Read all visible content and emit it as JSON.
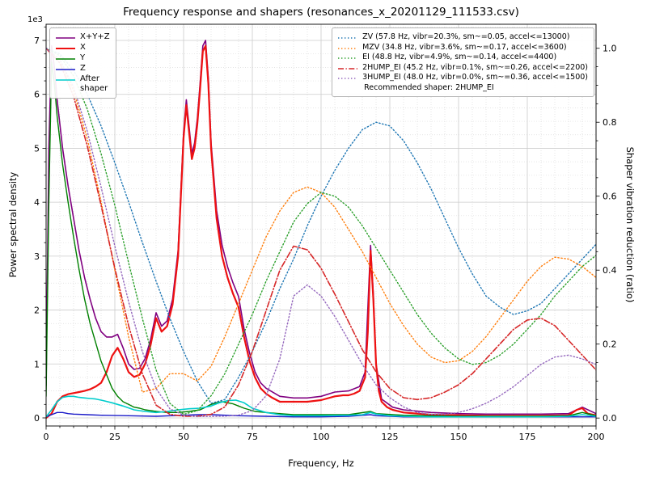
{
  "chart_data": {
    "type": "line",
    "title": "Frequency response and shapers (resonances_x_20201129_111533.csv)",
    "xlabel": "Frequency, Hz",
    "ylabel_left": "Power spectral density",
    "ylabel_right": "Shaper vibration reduction (ratio)",
    "y_left_offset_text": "1e3",
    "xlim": [
      0,
      200
    ],
    "ylim_left": [
      -0.15,
      7.3
    ],
    "ylim_right": [
      -0.0215,
      1.065
    ],
    "grid": "both",
    "x_ticks": {
      "values": [
        0,
        25,
        50,
        75,
        100,
        125,
        150,
        175,
        200
      ],
      "labels": [
        "0",
        "25",
        "50",
        "75",
        "100",
        "125",
        "150",
        "175",
        "200"
      ]
    },
    "y_left_ticks": {
      "values": [
        0,
        1,
        2,
        3,
        4,
        5,
        6,
        7
      ],
      "labels": [
        "0",
        "1",
        "2",
        "3",
        "4",
        "5",
        "6",
        "7"
      ]
    },
    "y_right_ticks": {
      "values": [
        0,
        0.2,
        0.4,
        0.6,
        0.8,
        1.0
      ],
      "labels": [
        "0.0",
        "0.2",
        "0.4",
        "0.6",
        "0.8",
        "1.0"
      ]
    },
    "x_minor_step": 5,
    "y_left_minor_step": 0.25,
    "y_right_minor_step": 0.05,
    "psd_unit_scale": "1e3",
    "psd_series": [
      {
        "name": "xyz",
        "label": "X+Y+Z",
        "color": "#800080",
        "style": "solid",
        "width": 1.6,
        "x": [
          0,
          1,
          2,
          3,
          4,
          6,
          8,
          10,
          12,
          14,
          16,
          18,
          20,
          22,
          24,
          26,
          28,
          30,
          32,
          34,
          36,
          38,
          40,
          42,
          44,
          46,
          48,
          50,
          51,
          52,
          53,
          54,
          55,
          56,
          57,
          58,
          59,
          60,
          62,
          64,
          66,
          68,
          70,
          72,
          74,
          76,
          78,
          80,
          85,
          90,
          95,
          100,
          105,
          110,
          114,
          116,
          118,
          119,
          120,
          122,
          126,
          130,
          140,
          150,
          160,
          170,
          180,
          190,
          195,
          200
        ],
        "y": [
          0.6,
          5.0,
          6.9,
          6.5,
          5.9,
          5.0,
          4.3,
          3.7,
          3.1,
          2.6,
          2.2,
          1.85,
          1.6,
          1.5,
          1.5,
          1.55,
          1.3,
          1.0,
          0.9,
          0.92,
          1.1,
          1.45,
          1.95,
          1.7,
          1.8,
          2.2,
          3.1,
          5.3,
          5.9,
          5.4,
          4.9,
          5.1,
          5.55,
          6.2,
          6.9,
          7.0,
          6.3,
          5.1,
          3.85,
          3.2,
          2.8,
          2.5,
          2.25,
          1.65,
          1.2,
          0.85,
          0.65,
          0.55,
          0.4,
          0.37,
          0.37,
          0.4,
          0.48,
          0.5,
          0.58,
          0.85,
          3.2,
          2.3,
          1.0,
          0.35,
          0.2,
          0.15,
          0.1,
          0.08,
          0.07,
          0.07,
          0.07,
          0.08,
          0.2,
          0.08
        ]
      },
      {
        "name": "x",
        "label": "X",
        "color": "#ee1111",
        "style": "solid",
        "width": 2.2,
        "x": [
          0,
          2,
          4,
          6,
          8,
          10,
          12,
          14,
          16,
          18,
          20,
          22,
          24,
          26,
          28,
          30,
          32,
          34,
          36,
          38,
          40,
          42,
          44,
          46,
          48,
          50,
          51,
          52,
          53,
          54,
          55,
          56,
          57,
          58,
          59,
          60,
          62,
          64,
          66,
          68,
          70,
          72,
          74,
          76,
          78,
          80,
          82,
          85,
          88,
          90,
          95,
          100,
          105,
          108,
          110,
          112,
          114,
          116,
          117,
          118,
          119,
          120,
          121,
          122,
          124,
          126,
          130,
          135,
          140,
          150,
          160,
          170,
          180,
          190,
          193,
          195,
          197,
          200
        ],
        "y": [
          0,
          0.08,
          0.3,
          0.4,
          0.44,
          0.46,
          0.48,
          0.5,
          0.53,
          0.58,
          0.65,
          0.85,
          1.15,
          1.3,
          1.1,
          0.85,
          0.76,
          0.8,
          1.0,
          1.35,
          1.85,
          1.6,
          1.7,
          2.1,
          3.0,
          5.2,
          5.8,
          5.3,
          4.8,
          5.0,
          5.45,
          6.1,
          6.8,
          6.9,
          6.2,
          5.0,
          3.7,
          3.0,
          2.6,
          2.3,
          2.05,
          1.5,
          1.05,
          0.75,
          0.55,
          0.45,
          0.38,
          0.3,
          0.3,
          0.3,
          0.3,
          0.33,
          0.4,
          0.42,
          0.42,
          0.45,
          0.5,
          0.75,
          1.6,
          3.1,
          2.2,
          1.0,
          0.5,
          0.3,
          0.2,
          0.15,
          0.1,
          0.08,
          0.06,
          0.05,
          0.04,
          0.04,
          0.04,
          0.05,
          0.15,
          0.18,
          0.08,
          0.05
        ]
      },
      {
        "name": "y",
        "label": "Y",
        "color": "#008000",
        "style": "solid",
        "width": 1.4,
        "x": [
          0,
          1,
          2,
          3,
          4,
          6,
          8,
          10,
          12,
          14,
          16,
          18,
          20,
          22,
          24,
          26,
          28,
          30,
          32,
          34,
          36,
          40,
          44,
          48,
          52,
          56,
          58,
          60,
          62,
          64,
          66,
          68,
          70,
          72,
          76,
          80,
          85,
          90,
          100,
          110,
          118,
          120,
          130,
          140,
          150,
          160,
          170,
          180,
          190,
          195,
          200
        ],
        "y": [
          0.4,
          4.0,
          6.6,
          6.2,
          5.6,
          4.7,
          4.0,
          3.35,
          2.75,
          2.2,
          1.75,
          1.4,
          1.05,
          0.8,
          0.55,
          0.4,
          0.3,
          0.25,
          0.2,
          0.18,
          0.15,
          0.12,
          0.1,
          0.1,
          0.12,
          0.15,
          0.2,
          0.25,
          0.28,
          0.3,
          0.28,
          0.26,
          0.22,
          0.18,
          0.12,
          0.1,
          0.08,
          0.06,
          0.06,
          0.06,
          0.12,
          0.08,
          0.05,
          0.04,
          0.03,
          0.03,
          0.03,
          0.03,
          0.04,
          0.1,
          0.04
        ]
      },
      {
        "name": "z",
        "label": "Z",
        "color": "#1a1ac8",
        "style": "solid",
        "width": 1.4,
        "x": [
          0,
          2,
          4,
          6,
          8,
          10,
          15,
          20,
          30,
          40,
          50,
          55,
          60,
          70,
          80,
          90,
          100,
          110,
          118,
          120,
          130,
          150,
          170,
          190,
          200
        ],
        "y": [
          0.02,
          0.06,
          0.1,
          0.1,
          0.08,
          0.07,
          0.06,
          0.05,
          0.04,
          0.03,
          0.05,
          0.06,
          0.06,
          0.04,
          0.03,
          0.02,
          0.02,
          0.03,
          0.06,
          0.04,
          0.02,
          0.02,
          0.02,
          0.02,
          0.02
        ]
      },
      {
        "name": "after_shaper",
        "label": "After\nshaper",
        "color": "#00cccc",
        "style": "solid",
        "width": 1.6,
        "x": [
          0,
          2,
          4,
          6,
          8,
          10,
          12,
          14,
          16,
          18,
          20,
          24,
          28,
          32,
          36,
          40,
          44,
          48,
          52,
          56,
          60,
          63,
          66,
          69,
          72,
          75,
          80,
          85,
          90,
          100,
          110,
          115,
          118,
          120,
          125,
          130,
          140,
          150,
          160,
          170,
          180,
          190,
          195,
          200
        ],
        "y": [
          0.02,
          0.15,
          0.3,
          0.38,
          0.4,
          0.4,
          0.38,
          0.37,
          0.36,
          0.35,
          0.33,
          0.28,
          0.22,
          0.15,
          0.12,
          0.1,
          0.12,
          0.15,
          0.17,
          0.18,
          0.22,
          0.28,
          0.32,
          0.33,
          0.28,
          0.18,
          0.1,
          0.06,
          0.04,
          0.04,
          0.05,
          0.06,
          0.1,
          0.07,
          0.04,
          0.03,
          0.02,
          0.02,
          0.02,
          0.02,
          0.02,
          0.03,
          0.06,
          0.03
        ]
      }
    ],
    "shaper_x": [
      0,
      5,
      10,
      15,
      20,
      25,
      30,
      35,
      40,
      45,
      50,
      55,
      60,
      65,
      70,
      75,
      80,
      85,
      90,
      95,
      100,
      105,
      110,
      115,
      120,
      125,
      130,
      135,
      140,
      145,
      150,
      155,
      160,
      165,
      170,
      175,
      180,
      185,
      190,
      195,
      200
    ],
    "shaper_series": [
      {
        "name": "zv",
        "label": "ZV (57.8 Hz, vibr=20.3%, sm~=0.05, accel<=13000)",
        "color": "#1f77b4",
        "style": "dotted",
        "width": 1.4,
        "y": [
          1.0,
          0.985,
          0.94,
          0.875,
          0.79,
          0.69,
          0.585,
          0.475,
          0.37,
          0.27,
          0.18,
          0.1,
          0.04,
          0.05,
          0.11,
          0.18,
          0.26,
          0.35,
          0.43,
          0.52,
          0.6,
          0.67,
          0.73,
          0.78,
          0.8,
          0.79,
          0.75,
          0.69,
          0.62,
          0.54,
          0.46,
          0.39,
          0.33,
          0.3,
          0.28,
          0.29,
          0.31,
          0.35,
          0.39,
          0.43,
          0.47
        ]
      },
      {
        "name": "mzv",
        "label": "MZV (34.8 Hz, vibr=3.6%, sm~=0.17, accel<=3600)",
        "color": "#ff7f0e",
        "style": "dotted",
        "width": 1.4,
        "y": [
          1.0,
          0.97,
          0.885,
          0.755,
          0.585,
          0.4,
          0.22,
          0.07,
          0.08,
          0.12,
          0.12,
          0.1,
          0.14,
          0.22,
          0.31,
          0.4,
          0.49,
          0.56,
          0.61,
          0.625,
          0.61,
          0.57,
          0.51,
          0.45,
          0.38,
          0.31,
          0.25,
          0.2,
          0.165,
          0.15,
          0.155,
          0.18,
          0.22,
          0.27,
          0.32,
          0.37,
          0.41,
          0.435,
          0.43,
          0.41,
          0.38
        ]
      },
      {
        "name": "ei",
        "label": "EI (48.8 Hz, vibr=4.9%, sm~=0.14, accel<=4400)",
        "color": "#2ca02c",
        "style": "dotted",
        "width": 1.4,
        "y": [
          1.0,
          0.98,
          0.925,
          0.835,
          0.715,
          0.575,
          0.42,
          0.27,
          0.13,
          0.04,
          0.01,
          0.02,
          0.06,
          0.12,
          0.2,
          0.28,
          0.37,
          0.45,
          0.53,
          0.58,
          0.61,
          0.6,
          0.57,
          0.52,
          0.46,
          0.4,
          0.34,
          0.28,
          0.23,
          0.19,
          0.16,
          0.145,
          0.15,
          0.17,
          0.2,
          0.24,
          0.28,
          0.33,
          0.37,
          0.41,
          0.44
        ]
      },
      {
        "name": "2hump_ei",
        "label": "2HUMP_EI (45.2 Hz, vibr=0.1%, sm~=0.26, accel<=2200)",
        "color": "#d62728",
        "style": "dashdot",
        "width": 1.6,
        "y": [
          1.0,
          0.96,
          0.87,
          0.735,
          0.575,
          0.405,
          0.25,
          0.12,
          0.035,
          0.01,
          0.005,
          0.005,
          0.01,
          0.03,
          0.09,
          0.18,
          0.29,
          0.4,
          0.465,
          0.455,
          0.405,
          0.335,
          0.26,
          0.185,
          0.125,
          0.08,
          0.055,
          0.05,
          0.055,
          0.07,
          0.09,
          0.12,
          0.16,
          0.2,
          0.24,
          0.265,
          0.27,
          0.25,
          0.21,
          0.17,
          0.13
        ]
      },
      {
        "name": "3hump_ei",
        "label": "3HUMP_EI (48.0 Hz, vibr=0.0%, sm~=0.36, accel<=1500)",
        "color": "#9467bd",
        "style": "dotted",
        "width": 1.4,
        "y": [
          1.0,
          0.97,
          0.895,
          0.775,
          0.625,
          0.465,
          0.315,
          0.18,
          0.08,
          0.025,
          0.008,
          0.004,
          0.004,
          0.005,
          0.008,
          0.02,
          0.06,
          0.16,
          0.33,
          0.36,
          0.33,
          0.275,
          0.21,
          0.145,
          0.09,
          0.055,
          0.03,
          0.015,
          0.01,
          0.01,
          0.015,
          0.025,
          0.04,
          0.06,
          0.085,
          0.115,
          0.145,
          0.165,
          0.17,
          0.16,
          0.145
        ]
      }
    ],
    "recommendation": "Recommended shaper: 2HUMP_EI"
  }
}
